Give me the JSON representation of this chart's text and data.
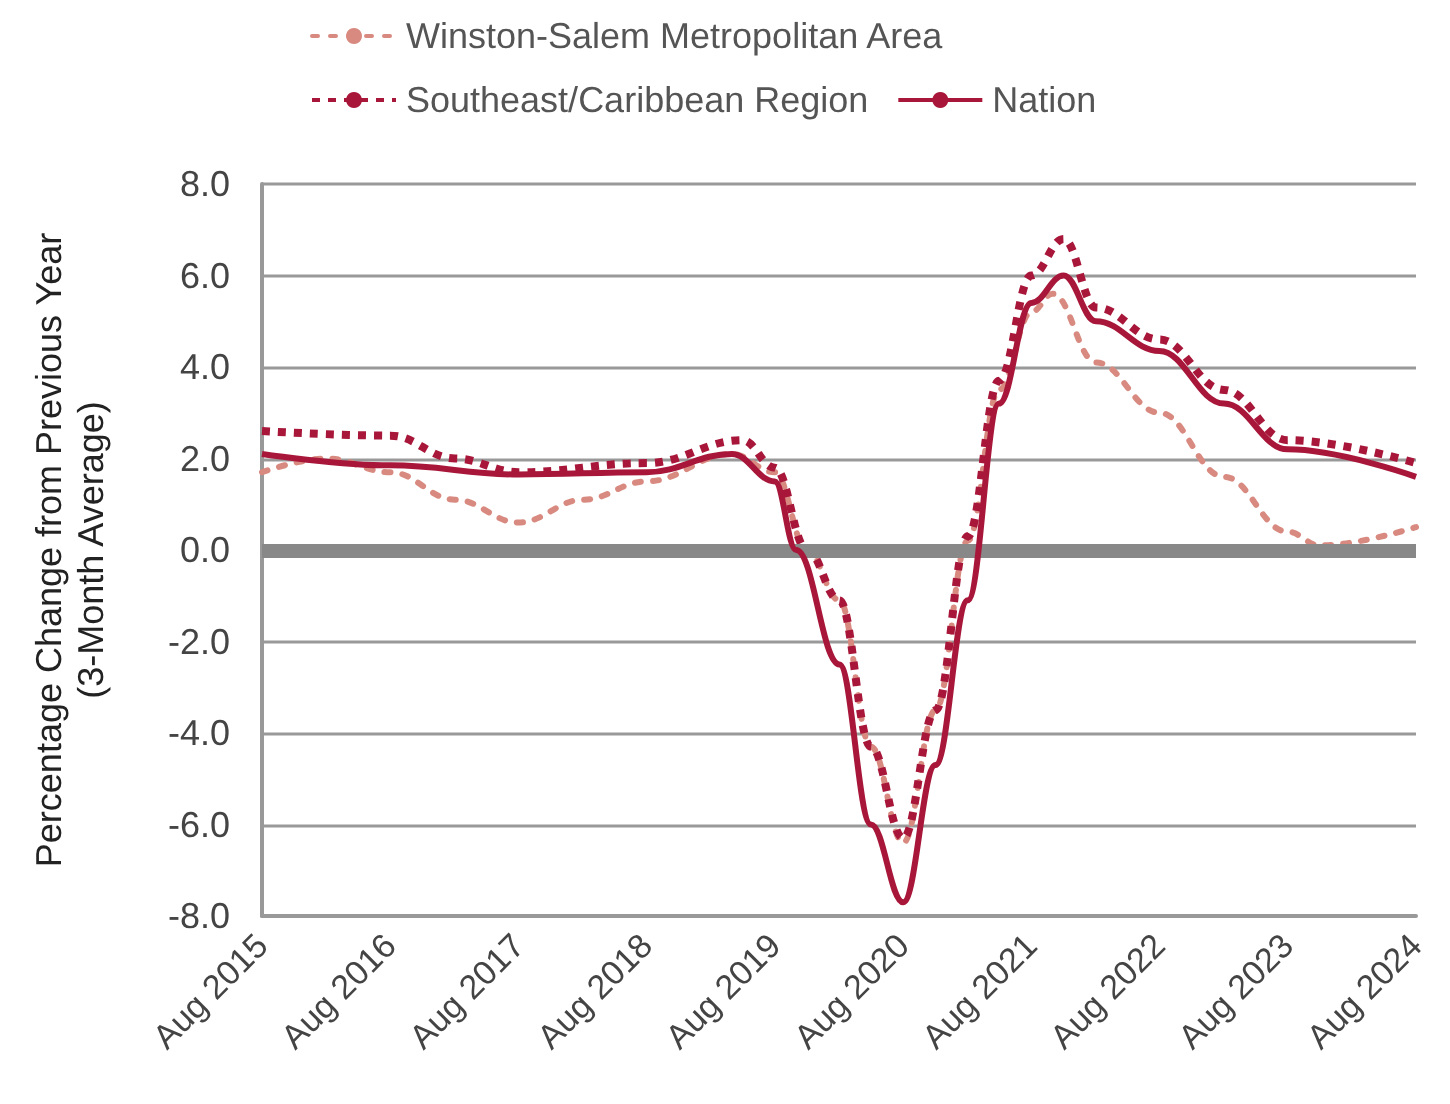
{
  "chart_data": {
    "type": "line",
    "ylabel": "Percentage Change from Previous Year\n(3-Month Average)",
    "ylim": [
      -8,
      8
    ],
    "yticks": [
      {
        "value": -8,
        "label": "-8.0"
      },
      {
        "value": -6,
        "label": "-6.0"
      },
      {
        "value": -4,
        "label": "-4.0"
      },
      {
        "value": -2,
        "label": "-2.0"
      },
      {
        "value": 0,
        "label": "0.0"
      },
      {
        "value": 2,
        "label": "2.0"
      },
      {
        "value": 4,
        "label": "4.0"
      },
      {
        "value": 6,
        "label": "6.0"
      },
      {
        "value": 8,
        "label": "8.0"
      }
    ],
    "xlim": [
      "2015-08",
      "2024-08"
    ],
    "xticks": [
      {
        "value": "2015-08",
        "label": "Aug 2015"
      },
      {
        "value": "2016-08",
        "label": "Aug 2016"
      },
      {
        "value": "2017-08",
        "label": "Aug 2017"
      },
      {
        "value": "2018-08",
        "label": "Aug 2018"
      },
      {
        "value": "2019-08",
        "label": "Aug 2019"
      },
      {
        "value": "2020-08",
        "label": "Aug 2020"
      },
      {
        "value": "2021-08",
        "label": "Aug 2021"
      },
      {
        "value": "2022-08",
        "label": "Aug 2022"
      },
      {
        "value": "2023-08",
        "label": "Aug 2023"
      },
      {
        "value": "2024-08",
        "label": "Aug 2024"
      }
    ],
    "grid": "y",
    "legend": "top",
    "marker": "none",
    "ref_lines": [
      {
        "axis": "y",
        "value": 0,
        "color": "#888888"
      }
    ],
    "series": [
      {
        "name": "Winston-Salem Metropolitan Area",
        "color": "#d98a80",
        "line_style": "dotted",
        "x": [
          "2015-08",
          "2016-02",
          "2016-08",
          "2017-02",
          "2017-08",
          "2018-02",
          "2018-08",
          "2019-04",
          "2019-08",
          "2019-11",
          "2020-02",
          "2020-05",
          "2020-08",
          "2020-11",
          "2021-02",
          "2021-05",
          "2021-08",
          "2021-10",
          "2022-02",
          "2022-08",
          "2023-02",
          "2023-08",
          "2023-11",
          "2024-08"
        ],
        "values": [
          1.7,
          2.0,
          1.7,
          1.1,
          0.6,
          1.1,
          1.5,
          2.1,
          1.7,
          0,
          -1.1,
          -4.3,
          -6.4,
          -3.5,
          0.2,
          3.5,
          5.2,
          5.6,
          4.1,
          3.0,
          1.6,
          0.4,
          0.1,
          0.5
        ]
      },
      {
        "name": "Southeast/Caribbean Region",
        "color": "#a8173a",
        "line_style": "dotted",
        "x": [
          "2015-08",
          "2016-08",
          "2017-02",
          "2017-08",
          "2018-08",
          "2019-05",
          "2019-08",
          "2019-11",
          "2020-02",
          "2020-05",
          "2020-08",
          "2020-11",
          "2021-02",
          "2021-05",
          "2021-08",
          "2021-11",
          "2022-02",
          "2022-08",
          "2023-02",
          "2023-08",
          "2024-08"
        ],
        "values": [
          2.6,
          2.5,
          2.0,
          1.7,
          1.9,
          2.4,
          1.8,
          0,
          -1.1,
          -4.3,
          -6.3,
          -3.5,
          0.3,
          3.7,
          6.0,
          6.8,
          5.3,
          4.6,
          3.5,
          2.4,
          1.9
        ]
      },
      {
        "name": "Nation",
        "color": "#a8173a",
        "line_style": "solid",
        "x": [
          "2015-08",
          "2016-08",
          "2017-08",
          "2018-08",
          "2019-04",
          "2019-08",
          "2019-10",
          "2020-02",
          "2020-05",
          "2020-08",
          "2020-11",
          "2021-02",
          "2021-05",
          "2021-08",
          "2021-11",
          "2022-02",
          "2022-08",
          "2023-02",
          "2023-08",
          "2024-08"
        ],
        "values": [
          2.1,
          1.85,
          1.65,
          1.7,
          2.1,
          1.5,
          0,
          -2.5,
          -6.0,
          -7.7,
          -4.7,
          -1.1,
          3.2,
          5.4,
          6.0,
          5.0,
          4.35,
          3.2,
          2.2,
          1.6
        ]
      }
    ]
  }
}
